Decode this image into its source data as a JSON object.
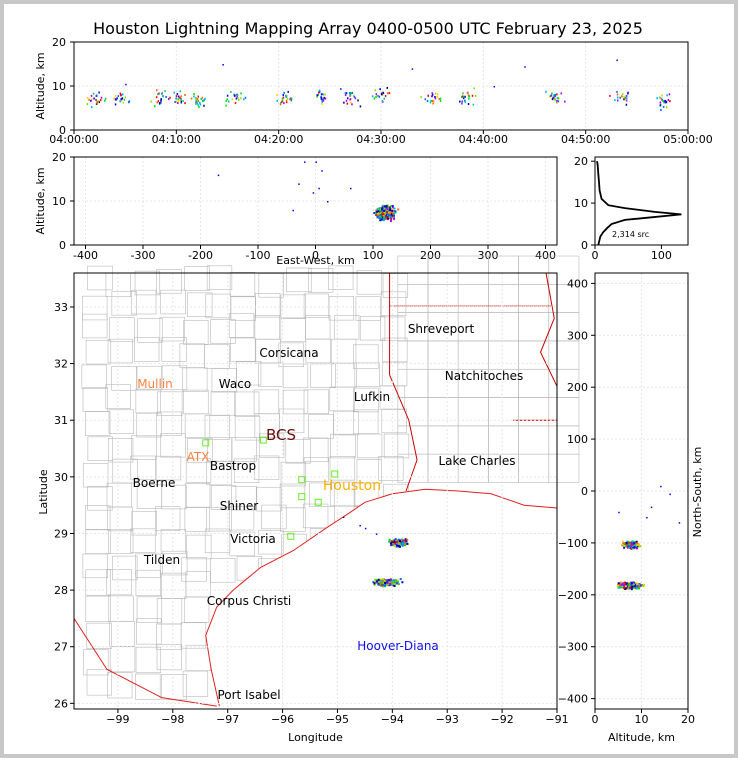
{
  "title": "Houston Lightning Mapping Array 0400-0500 UTC February 23, 2025",
  "colors": {
    "coast": "#e02020",
    "state": "#cc0000",
    "county": "#b8b8b8",
    "station": "#66ee22",
    "grid": "#e6e6e6"
  },
  "chart_data": [
    {
      "type": "scatter",
      "name": "altitude-time",
      "ylabel": "Altitude, km",
      "ylim": [
        0,
        20
      ],
      "yticks": [
        0,
        10,
        20
      ],
      "xlim": [
        "04:00:00",
        "05:00:00"
      ],
      "xticks": [
        "04:00:00",
        "04:10:00",
        "04:20:00",
        "04:30:00",
        "04:40:00",
        "04:50:00",
        "05:00:00"
      ],
      "source_clusters_minutes": [
        {
          "t": 2.2,
          "alt": 7
        },
        {
          "t": 4.5,
          "alt": 7.5
        },
        {
          "t": 8.3,
          "alt": 7.5
        },
        {
          "t": 10.2,
          "alt": 7.5
        },
        {
          "t": 12.2,
          "alt": 7
        },
        {
          "t": 15.5,
          "alt": 7
        },
        {
          "t": 20.5,
          "alt": 7.5
        },
        {
          "t": 24,
          "alt": 7.8
        },
        {
          "t": 27,
          "alt": 7.5
        },
        {
          "t": 30,
          "alt": 8
        },
        {
          "t": 35,
          "alt": 7.5
        },
        {
          "t": 38.3,
          "alt": 7.5
        },
        {
          "t": 47,
          "alt": 7.5
        },
        {
          "t": 53.5,
          "alt": 7.5
        },
        {
          "t": 57.5,
          "alt": 6.8
        }
      ]
    },
    {
      "type": "scatter",
      "name": "altitude-east-west",
      "xlabel": "East-West, km",
      "ylabel": "Altitude, km",
      "xlim": [
        -420,
        420
      ],
      "ylim": [
        0,
        20
      ],
      "xticks": [
        -400,
        -300,
        -200,
        -100,
        0,
        100,
        200,
        300,
        400
      ],
      "yticks": [
        0,
        10,
        20
      ],
      "clusters": [
        {
          "x": 120,
          "alt": 7.5,
          "spread_x": 25,
          "spread_alt": 2.5
        }
      ]
    },
    {
      "type": "line",
      "name": "altitude-histogram",
      "xlim": [
        0,
        140
      ],
      "ylim": [
        0,
        21
      ],
      "xticks": [
        0,
        100
      ],
      "yticks": [
        0,
        10,
        20
      ],
      "annotation": "2,314 src",
      "points": [
        [
          5,
          0
        ],
        [
          8,
          2
        ],
        [
          12,
          3
        ],
        [
          18,
          4
        ],
        [
          25,
          5
        ],
        [
          45,
          6
        ],
        [
          85,
          6.6
        ],
        [
          130,
          7.3
        ],
        [
          90,
          7.9
        ],
        [
          45,
          8.8
        ],
        [
          20,
          9.5
        ],
        [
          10,
          11
        ],
        [
          7,
          13
        ],
        [
          6,
          15
        ],
        [
          5,
          17
        ],
        [
          4,
          19
        ],
        [
          3,
          20
        ]
      ]
    },
    {
      "type": "scatter",
      "name": "plan-view-map",
      "xlabel": "Longitude",
      "ylabel": "Latitude",
      "xlim": [
        -99.8,
        -91
      ],
      "ylim": [
        25.9,
        33.6
      ],
      "xticks": [
        -99,
        -98,
        -97,
        -96,
        -95,
        -94,
        -93,
        -92,
        -91
      ],
      "yticks": [
        26,
        27,
        28,
        29,
        30,
        31,
        32,
        33
      ],
      "clusters": [
        {
          "lon": -93.9,
          "lat": 28.85
        },
        {
          "lon": -94.1,
          "lat": 28.15
        }
      ],
      "stations": [
        {
          "lon": -97.4,
          "lat": 30.6
        },
        {
          "lon": -96.35,
          "lat": 30.65
        },
        {
          "lon": -95.85,
          "lat": 28.95
        },
        {
          "lon": -95.65,
          "lat": 29.95
        },
        {
          "lon": -95.65,
          "lat": 29.65
        },
        {
          "lon": -95.05,
          "lat": 30.05
        },
        {
          "lon": -95.35,
          "lat": 29.55
        }
      ]
    },
    {
      "type": "scatter",
      "name": "north-south-altitude",
      "xlabel": "Altitude, km",
      "ylabel": "North-South, km",
      "xlim": [
        0,
        20
      ],
      "ylim": [
        -420,
        420
      ],
      "xticks": [
        0,
        10,
        20
      ],
      "yticks": [
        -400,
        -300,
        -200,
        -100,
        0,
        100,
        200,
        300,
        400
      ],
      "clusters": [
        {
          "alt": 7.5,
          "ns": -102
        },
        {
          "alt": 7.5,
          "ns": -180
        }
      ]
    }
  ],
  "map_labels": [
    {
      "text": "Shreveport",
      "color": "#000000"
    },
    {
      "text": "Corsicana",
      "color": "#000000"
    },
    {
      "text": "Mullin",
      "color": "#ff7f3f"
    },
    {
      "text": "Waco",
      "color": "#000000"
    },
    {
      "text": "Natchitoches",
      "color": "#000000"
    },
    {
      "text": "Lufkin",
      "color": "#000000"
    },
    {
      "text": "BCS",
      "color": "#6a0a0a"
    },
    {
      "text": "ATX",
      "color": "#ff7f3f"
    },
    {
      "text": "Bastrop",
      "color": "#000000"
    },
    {
      "text": "Lake Charles",
      "color": "#000000"
    },
    {
      "text": "Houston",
      "color": "#ffb000"
    },
    {
      "text": "Boerne",
      "color": "#000000"
    },
    {
      "text": "Shiner",
      "color": "#000000"
    },
    {
      "text": "Victoria",
      "color": "#000000"
    },
    {
      "text": "Tilden",
      "color": "#000000"
    },
    {
      "text": "Corpus Christi",
      "color": "#000000"
    },
    {
      "text": "Hoover-Diana",
      "color": "#1010ee"
    },
    {
      "text": "Port Isabel",
      "color": "#000000"
    }
  ]
}
